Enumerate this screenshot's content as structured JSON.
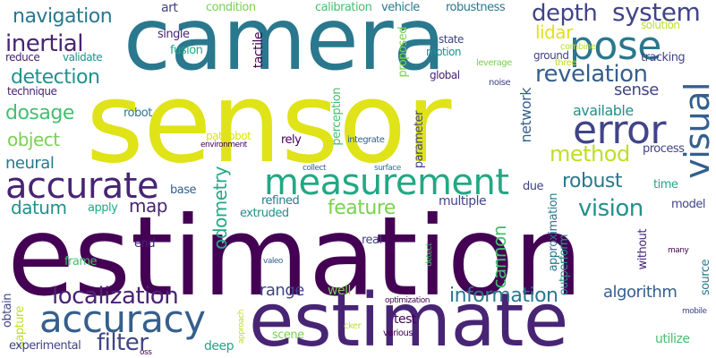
{
  "words": {
    "sensor": "sensor",
    "camera": "camera",
    "estimation": "estimation",
    "estimate": "estimate",
    "measurement": "measurement",
    "accuracy": "accuracy",
    "accurate": "accurate",
    "pose": "pose",
    "error": "error",
    "visual": "visual",
    "localization": "localization",
    "system": "system",
    "depth": "depth",
    "navigation": "navigation",
    "inertial": "inertial",
    "detection": "detection",
    "revelation": "revelation",
    "method": "method",
    "robust": "robust",
    "vision": "vision",
    "feature": "feature",
    "filter": "filter",
    "information": "information",
    "dosage": "dosage",
    "object": "object",
    "neural": "neural",
    "datum": "datum",
    "map": "map",
    "odometry": "odometry",
    "cannon": "cannon",
    "algorithm": "algorithm",
    "range": "range",
    "lidar": "lidar",
    "sense": "sense",
    "available": "available",
    "network": "network",
    "tactile": "tactile",
    "art": "art",
    "condition": "condition",
    "calibration": "calibration",
    "vehicle": "vehicle",
    "robustness": "robustness",
    "single": "single",
    "fusion": "fusion",
    "proposed": "proposed",
    "state": "state",
    "motion": "motion",
    "solution": "solution",
    "combine": "combine",
    "ground": "ground",
    "leverage": "leverage",
    "three": "three",
    "tracking": "tracking",
    "reduce": "reduce",
    "validate": "validate",
    "global": "global",
    "noise": "noise",
    "technique": "technique",
    "robot": "robot",
    "perception": "perception",
    "pathobot": "pathobot",
    "environment": "environment",
    "rely": "rely",
    "integrate": "integrate",
    "parameter": "parameter",
    "process": "process",
    "collect": "collect",
    "surface": "surface",
    "base": "base",
    "time": "time",
    "refined": "refined",
    "extruded": "extruded",
    "due": "due",
    "multiple": "multiple",
    "model": "model",
    "apply": "apply",
    "approximation": "approximation",
    "end": "end",
    "real": "real",
    "without": "without",
    "frame": "frame",
    "detect": "detect",
    "valeo": "valeo",
    "outperform": "outperform",
    "many": "many",
    "source": "source",
    "obtain": "obtain",
    "capture": "capture",
    "well": "well",
    "optimization": "optimization",
    "mobile": "mobile",
    "test": "test",
    "approach": "approach",
    "cker": "cker",
    "various": "various",
    "experimental": "experimental",
    "deep": "deep",
    "scene": "scene",
    "oss": "oss",
    "utilize": "utilize"
  }
}
